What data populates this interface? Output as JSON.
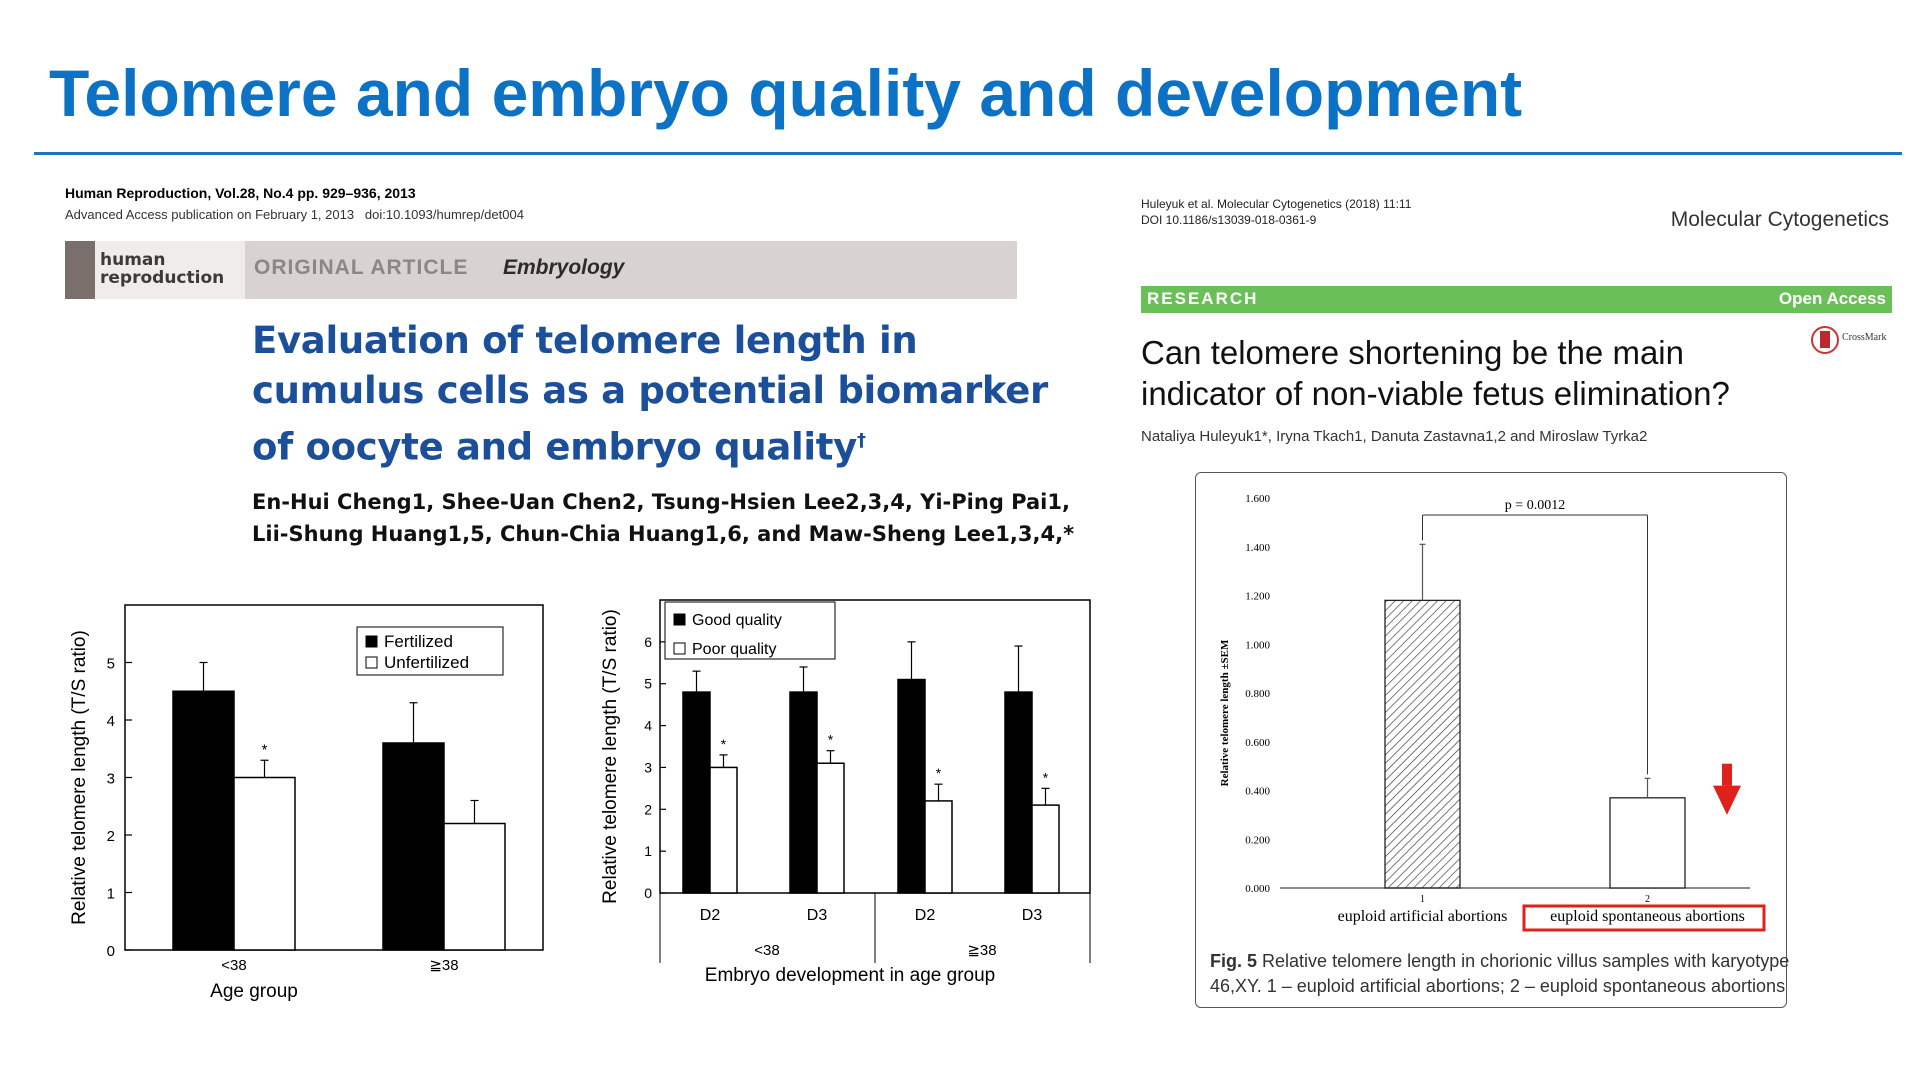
{
  "slide": {
    "title": "Telomere and embryo quality and development"
  },
  "left_paper": {
    "journal": "Human Reproduction, Vol.28, No.4 pp. 929–936, 2013",
    "access": "Advanced Access publication on February 1, 2013",
    "doi": "doi:10.1093/humrep/det004",
    "logo_line1": "human",
    "logo_line2": "reproduction",
    "article_type": "ORIGINAL ARTICLE",
    "section": "Embryology",
    "title_line1": "Evaluation of telomere length in",
    "title_line2": "cumulus cells as a potential biomarker",
    "title_line3": "of oocyte and embryo quality",
    "title_mark": "†",
    "authors_line1": "En-Hui Cheng1, Shee-Uan Chen2, Tsung-Hsien Lee2,3,4, Yi-Ping Pai1,",
    "authors_line2": "Lii-Shung Huang1,5, Chun-Chia Huang1,6, and Maw-Sheng Lee1,3,4,*"
  },
  "right_paper": {
    "citation": "Huleyuk et al. Molecular Cytogenetics (2018) 11:11",
    "doi": "DOI 10.1186/s13039-018-0361-9",
    "journal": "Molecular Cytogenetics",
    "label": "RESEARCH",
    "access": "Open Access",
    "crossmark": "CrossMark",
    "title_line1": "Can telomere shortening be the main",
    "title_line2": "indicator of non-viable fetus elimination?",
    "authors": "Nataliya Huleyuk1*, Iryna Tkach1, Danuta Zastavna1,2 and Miroslaw Tyrka2",
    "caption_label": "Fig. 5",
    "caption_line1": "Relative telomere length in chorionic villus samples with karyotype",
    "caption_line2": "46,XY. 1 – euploid artificial abortions; 2 – euploid spontaneous abortions",
    "accent_color": "#e0201b",
    "research_bar_color": "#6bbf59"
  },
  "colors": {
    "title": "#0b72c6",
    "rule": "#1f74c2",
    "paper_title": "#1b4f9a"
  },
  "chart_data": [
    {
      "type": "bar",
      "categories": [
        "<38",
        "≧38"
      ],
      "series": [
        {
          "name": "Fertilized",
          "values": [
            4.5,
            3.6
          ],
          "errors": [
            0.5,
            0.7
          ],
          "fill": "#000000"
        },
        {
          "name": "Unfertilized",
          "values": [
            3.0,
            2.2
          ],
          "errors": [
            0.3,
            0.4
          ],
          "fill": "#ffffff",
          "marks": [
            "*",
            ""
          ]
        }
      ],
      "xlabel": "Age group",
      "ylabel": "Relative telomere length (T/S ratio)",
      "ylim": [
        0,
        6
      ],
      "yticks": [
        0,
        1,
        2,
        3,
        4,
        5
      ],
      "legend": "top-right"
    },
    {
      "type": "bar",
      "categories": [
        "D2",
        "D3",
        "D2",
        "D3"
      ],
      "groups": [
        "<38",
        "≧38"
      ],
      "series": [
        {
          "name": "Good quality",
          "values": [
            4.8,
            4.8,
            5.1,
            4.8
          ],
          "errors": [
            0.5,
            0.6,
            0.9,
            1.1
          ],
          "fill": "#000000"
        },
        {
          "name": "Poor quality",
          "values": [
            3.0,
            3.1,
            2.2,
            2.1
          ],
          "errors": [
            0.3,
            0.3,
            0.4,
            0.4
          ],
          "fill": "#ffffff",
          "marks": [
            "*",
            "*",
            "*",
            "*"
          ]
        }
      ],
      "xlabel": "Embryo development in age group",
      "ylabel": "Relative telomere length (T/S ratio)",
      "ylim": [
        0,
        7
      ],
      "yticks": [
        0,
        1,
        2,
        3,
        4,
        5,
        6
      ],
      "legend": "top-left"
    },
    {
      "type": "bar",
      "categories": [
        "1",
        "2"
      ],
      "category_labels": [
        "euploid artificial abortions",
        "euploid spontaneous abortions"
      ],
      "values": [
        1.18,
        0.37
      ],
      "errors": [
        0.23,
        0.08
      ],
      "fills": [
        "hatched",
        "#ffffff"
      ],
      "ylabel": "Relative telomere length ±SEM",
      "ylim": [
        0,
        1.6
      ],
      "yticks": [
        "0.000",
        "0.200",
        "0.400",
        "0.600",
        "0.800",
        "1.000",
        "1.200",
        "1.400",
        "1.600"
      ],
      "annotation": "p = 0.0012"
    }
  ]
}
